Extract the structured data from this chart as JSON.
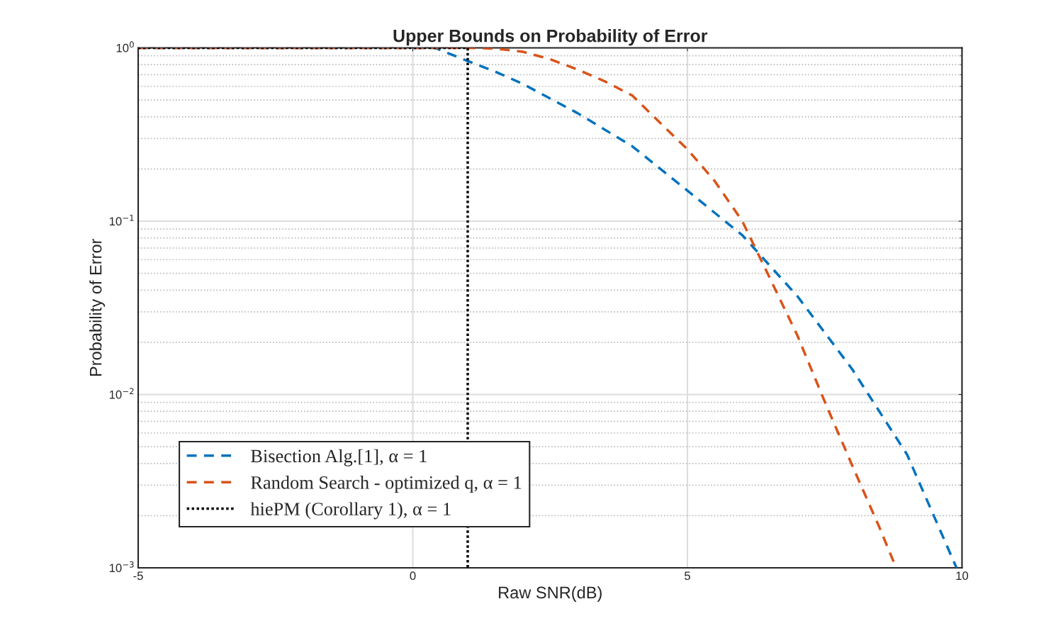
{
  "chart_data": {
    "type": "line",
    "title": "Upper Bounds on Probability of Error",
    "xlabel": "Raw SNR(dB)",
    "ylabel": "Probability of Error",
    "series": [
      {
        "name": "Bisection Alg.[1], α = 1",
        "color": "#0072bd",
        "line_style": "dashed",
        "x": [
          -5,
          0.4,
          1,
          1.5,
          2,
          3,
          4,
          5,
          6,
          7,
          8,
          9,
          9.9
        ],
        "values": [
          1,
          1,
          0.84,
          0.73,
          0.62,
          0.42,
          0.27,
          0.15,
          0.083,
          0.037,
          0.014,
          0.0045,
          0.001
        ]
      },
      {
        "name": "Random Search - optimized q, α = 1",
        "color": "#d95319",
        "line_style": "dashed",
        "x": [
          -5,
          1,
          1.5,
          2,
          2.5,
          3,
          3.5,
          4,
          4.5,
          5,
          5.5,
          6,
          6.5,
          7,
          7.5,
          8,
          8.5,
          8.8
        ],
        "values": [
          1,
          1,
          0.99,
          0.95,
          0.86,
          0.75,
          0.64,
          0.53,
          0.37,
          0.26,
          0.17,
          0.1,
          0.047,
          0.022,
          0.0091,
          0.0039,
          0.0017,
          0.001
        ]
      },
      {
        "name": "hiePM (Corollary 1), α = 1",
        "color": "#000000",
        "line_style": "dotted",
        "x": [
          -5,
          1,
          1
        ],
        "values": [
          1,
          1,
          0.001
        ]
      }
    ],
    "xlim": [
      -5,
      10
    ],
    "xticks": [
      -5,
      0,
      5,
      10
    ],
    "ylim": [
      0.001,
      1
    ],
    "yticks": [
      {
        "value": 0.001,
        "label": "10$^{−3}$"
      },
      {
        "value": 0.01,
        "label": "10$^{−2}$"
      },
      {
        "value": 0.1,
        "label": "10$^{−1}$"
      },
      {
        "value": 1,
        "label": "10$^{0}$"
      }
    ],
    "log": "y",
    "grid": true,
    "legend": "bottom left"
  }
}
